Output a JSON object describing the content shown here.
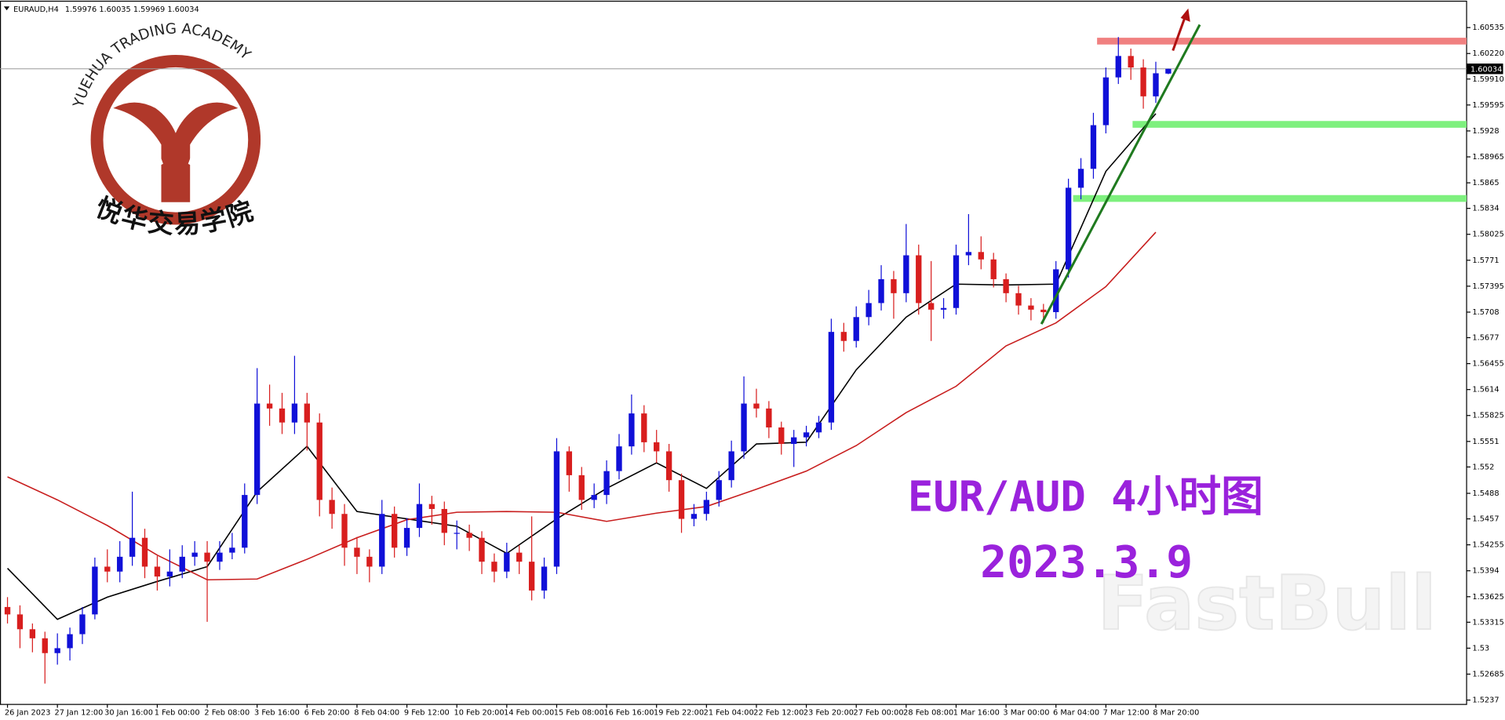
{
  "chart_data": {
    "type": "candlestick",
    "symbol": "EURAUD,H4",
    "up_color": "#1010d8",
    "down_color": "#d81e1e",
    "xlim": [
      -0.6,
      116.9
    ],
    "ylim": [
      1.52323,
      1.60861
    ],
    "xticks": [
      {
        "value": 0,
        "label": "26 Jan 2023"
      },
      {
        "value": 4,
        "label": "27 Jan 12:00"
      },
      {
        "value": 8,
        "label": "30 Jan 16:00"
      },
      {
        "value": 12,
        "label": "1 Feb 00:00"
      },
      {
        "value": 16,
        "label": "2 Feb 08:00"
      },
      {
        "value": 20,
        "label": "3 Feb 16:00"
      },
      {
        "value": 24,
        "label": "6 Feb 20:00"
      },
      {
        "value": 28,
        "label": "8 Feb 04:00"
      },
      {
        "value": 32,
        "label": "9 Feb 12:00"
      },
      {
        "value": 36,
        "label": "10 Feb 20:00"
      },
      {
        "value": 40,
        "label": "14 Feb 00:00"
      },
      {
        "value": 44,
        "label": "15 Feb 08:00"
      },
      {
        "value": 48,
        "label": "16 Feb 16:00"
      },
      {
        "value": 52,
        "label": "19 Feb 22:00"
      },
      {
        "value": 56,
        "label": "21 Feb 04:00"
      },
      {
        "value": 60,
        "label": "22 Feb 12:00"
      },
      {
        "value": 64,
        "label": "23 Feb 20:00"
      },
      {
        "value": 68,
        "label": "27 Feb 00:00"
      },
      {
        "value": 72,
        "label": "28 Feb 08:00"
      },
      {
        "value": 76,
        "label": "1 Mar 16:00"
      },
      {
        "value": 80,
        "label": "3 Mar 00:00"
      },
      {
        "value": 84,
        "label": "6 Mar 04:00"
      },
      {
        "value": 88,
        "label": "7 Mar 12:00"
      },
      {
        "value": 92,
        "label": "8 Mar 20:00"
      }
    ],
    "yticks": [
      1.60535,
      {
        "value": 1.6022,
        "label": "1.60220"
      },
      {
        "value": 1.5991,
        "label": "1.59910"
      },
      1.59595,
      1.5928,
      1.58965,
      1.5865,
      1.5834,
      1.58025,
      1.5771,
      1.57395,
      1.5708,
      1.5677,
      1.56455,
      1.5614,
      1.55825,
      1.5551,
      1.552,
      1.5488,
      1.5457,
      1.54255,
      1.5394,
      1.53625,
      1.53315,
      1.53,
      1.52685,
      1.5237
    ],
    "open": [
      1.535,
      1.5341,
      1.5323,
      1.5312,
      1.5294,
      1.53,
      1.5317,
      1.5341,
      1.5399,
      1.5393,
      1.5411,
      1.5434,
      1.5399,
      1.5387,
      1.5393,
      1.5411,
      1.5416,
      1.5405,
      1.5416,
      1.5422,
      1.5486,
      1.5597,
      1.5591,
      1.5574,
      1.5597,
      1.5574,
      1.548,
      1.5463,
      1.5422,
      1.5411,
      1.5399,
      1.5463,
      1.5422,
      1.5446,
      1.5475,
      1.5469,
      1.544,
      1.544,
      1.5434,
      1.5405,
      1.5393,
      1.5416,
      1.5405,
      1.537,
      1.5399,
      1.5539,
      1.551,
      1.548,
      1.5486,
      1.5515,
      1.5545,
      1.5585,
      1.555,
      1.5539,
      1.5504,
      1.5457,
      1.5463,
      1.548,
      1.5504,
      1.5539,
      1.5597,
      1.5591,
      1.5568,
      1.5548,
      1.5556,
      1.5562,
      1.5574,
      1.5684,
      1.5673,
      1.5702,
      1.5719,
      1.5748,
      1.5731,
      1.5777,
      1.5719,
      1.5711,
      1.5713,
      1.5777,
      1.5781,
      1.5772,
      1.5748,
      1.5731,
      1.5716,
      1.5711,
      1.5708,
      1.576,
      1.5859,
      1.5882,
      1.5935,
      1.5993,
      1.6019,
      1.6005,
      1.597,
      1.59976
    ],
    "high": [
      1.5362,
      1.5352,
      1.533,
      1.532,
      1.5318,
      1.5325,
      1.535,
      1.541,
      1.542,
      1.543,
      1.549,
      1.5445,
      1.5412,
      1.542,
      1.5425,
      1.543,
      1.543,
      1.543,
      1.544,
      1.55,
      1.564,
      1.562,
      1.561,
      1.5655,
      1.561,
      1.5585,
      1.5495,
      1.5475,
      1.5435,
      1.542,
      1.548,
      1.5472,
      1.5458,
      1.55,
      1.5485,
      1.5478,
      1.5455,
      1.545,
      1.5442,
      1.5415,
      1.5428,
      1.5425,
      1.546,
      1.541,
      1.5555,
      1.5545,
      1.552,
      1.55,
      1.5528,
      1.556,
      1.5608,
      1.5595,
      1.5565,
      1.5548,
      1.5512,
      1.5475,
      1.549,
      1.5515,
      1.5552,
      1.563,
      1.5615,
      1.56,
      1.5575,
      1.5565,
      1.557,
      1.5582,
      1.57,
      1.5695,
      1.5715,
      1.5735,
      1.5765,
      1.5758,
      1.5815,
      1.579,
      1.577,
      1.5725,
      1.579,
      1.5827,
      1.58,
      1.578,
      1.5755,
      1.574,
      1.5725,
      1.5718,
      1.577,
      1.587,
      1.5895,
      1.595,
      1.6005,
      1.6042,
      1.6028,
      1.6015,
      1.6012,
      1.60035
    ],
    "low": [
      1.533,
      1.53,
      1.5295,
      1.5257,
      1.528,
      1.5285,
      1.5305,
      1.5335,
      1.538,
      1.538,
      1.54,
      1.5385,
      1.537,
      1.5375,
      1.5385,
      1.54,
      1.5332,
      1.5395,
      1.5408,
      1.5415,
      1.5475,
      1.557,
      1.556,
      1.556,
      1.554,
      1.546,
      1.5445,
      1.54,
      1.539,
      1.538,
      1.539,
      1.541,
      1.5412,
      1.5435,
      1.545,
      1.5425,
      1.542,
      1.5418,
      1.539,
      1.538,
      1.5385,
      1.539,
      1.5358,
      1.536,
      1.539,
      1.549,
      1.5468,
      1.547,
      1.5475,
      1.5505,
      1.5535,
      1.5538,
      1.5525,
      1.549,
      1.544,
      1.5448,
      1.5455,
      1.5472,
      1.5495,
      1.553,
      1.558,
      1.5555,
      1.5535,
      1.552,
      1.5545,
      1.5555,
      1.5565,
      1.566,
      1.5665,
      1.5692,
      1.571,
      1.57,
      1.572,
      1.5705,
      1.5673,
      1.57,
      1.5705,
      1.5765,
      1.576,
      1.5738,
      1.572,
      1.5705,
      1.5698,
      1.5695,
      1.57,
      1.575,
      1.5845,
      1.587,
      1.5925,
      1.5985,
      1.599,
      1.5955,
      1.5962,
      1.59969
    ],
    "close": [
      1.5341,
      1.5323,
      1.5312,
      1.5294,
      1.53,
      1.5317,
      1.5341,
      1.5399,
      1.5393,
      1.5411,
      1.5434,
      1.5399,
      1.5387,
      1.5393,
      1.5411,
      1.5416,
      1.5405,
      1.5416,
      1.5422,
      1.5486,
      1.5597,
      1.5591,
      1.5574,
      1.5597,
      1.5574,
      1.548,
      1.5463,
      1.5422,
      1.5411,
      1.5399,
      1.5463,
      1.5422,
      1.5446,
      1.5475,
      1.5469,
      1.544,
      1.544,
      1.5434,
      1.5405,
      1.5393,
      1.5416,
      1.5405,
      1.537,
      1.5399,
      1.5539,
      1.551,
      1.548,
      1.5486,
      1.5515,
      1.5545,
      1.5585,
      1.555,
      1.5539,
      1.5504,
      1.5457,
      1.5463,
      1.548,
      1.5504,
      1.5539,
      1.5597,
      1.5591,
      1.5568,
      1.5548,
      1.5556,
      1.5562,
      1.5574,
      1.5684,
      1.5673,
      1.5702,
      1.5719,
      1.5748,
      1.5731,
      1.5777,
      1.5719,
      1.5711,
      1.5713,
      1.5777,
      1.5781,
      1.5772,
      1.5748,
      1.5731,
      1.5716,
      1.5711,
      1.5708,
      1.576,
      1.5859,
      1.5882,
      1.5935,
      1.5993,
      1.6019,
      1.6005,
      1.597,
      1.5998,
      1.60034
    ],
    "lines": [
      {
        "color": "#000000",
        "x": [
          0,
          4,
          8,
          12,
          16,
          20,
          24,
          28,
          32,
          36,
          40,
          44,
          48,
          52,
          56,
          60,
          64,
          68,
          72,
          76,
          80,
          84,
          88,
          92
        ],
        "values": [
          1.5397,
          1.5335,
          1.5362,
          1.5381,
          1.5399,
          1.549,
          1.5545,
          1.5466,
          1.5457,
          1.5448,
          1.5415,
          1.5457,
          1.5494,
          1.5525,
          1.5494,
          1.5548,
          1.555,
          1.5638,
          1.5702,
          1.5742,
          1.5741,
          1.5742,
          1.5879,
          1.5949
        ]
      },
      {
        "color": "#c81e1e",
        "x": [
          0,
          4,
          8,
          12,
          16,
          20,
          24,
          28,
          32,
          36,
          40,
          44,
          48,
          52,
          56,
          60,
          64,
          68,
          72,
          76,
          80,
          84,
          88,
          92
        ],
        "values": [
          1.5508,
          1.548,
          1.5449,
          1.5413,
          1.5383,
          1.5384,
          1.5408,
          1.5434,
          1.5456,
          1.5465,
          1.5466,
          1.5465,
          1.5454,
          1.5464,
          1.5472,
          1.5493,
          1.5515,
          1.5546,
          1.5586,
          1.5618,
          1.5667,
          1.5695,
          1.5739,
          1.5805
        ]
      }
    ],
    "levels": [
      {
        "value": 1.6037,
        "color": "#f08080"
      },
      {
        "value": 1.5936,
        "color": "#7ef07e"
      },
      {
        "value": 1.5846,
        "color": "#7ef07e"
      }
    ],
    "last_price": 1.60034,
    "annotations": [
      "EUR/AUD 4小时图",
      "2023.3.9"
    ]
  },
  "logo": {
    "title": "YUEHUA TRADING ACADEMY",
    "subtitle": "悦华交易学院"
  },
  "watermark": "FastBull"
}
